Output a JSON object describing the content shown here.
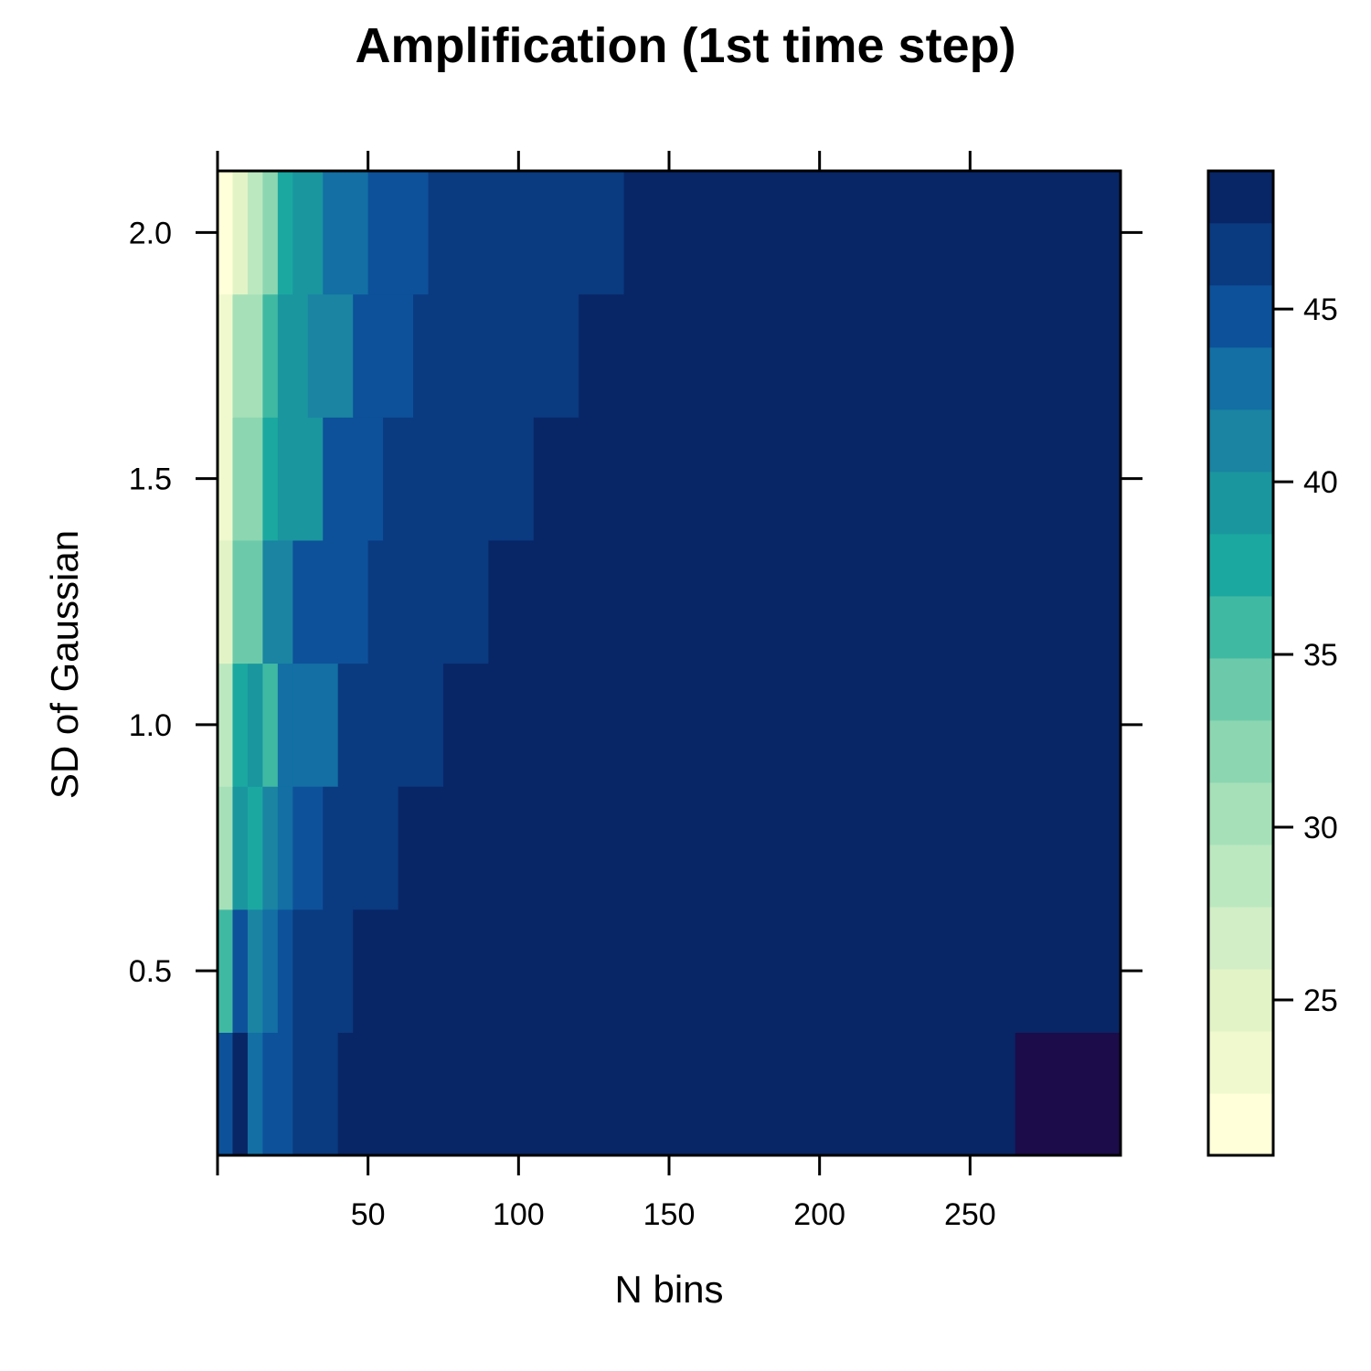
{
  "chart_data": {
    "type": "heatmap",
    "title": "Amplification (1st time step)",
    "xlabel": "N bins",
    "ylabel": "SD of Gaussian",
    "xlim": [
      0,
      300
    ],
    "ylim": [
      0.125,
      2.125
    ],
    "x_ticks": [
      50,
      100,
      150,
      200,
      250
    ],
    "x_tick_labels": [
      "50",
      "100",
      "150",
      "200",
      "250"
    ],
    "y_ticks": [
      0.5,
      1.0,
      1.5,
      2.0
    ],
    "y_tick_labels": [
      "0.5",
      "1.0",
      "1.5",
      "2.0"
    ],
    "colorbar": {
      "range": [
        20.5,
        49
      ],
      "ticks": [
        25,
        30,
        35,
        40,
        45
      ],
      "tick_labels": [
        "25",
        "30",
        "35",
        "40",
        "45"
      ],
      "levels": [
        {
          "from": 20.5,
          "to": 22.3,
          "color": "#ffffd9"
        },
        {
          "from": 22.3,
          "to": 24.1,
          "color": "#f0f9ce"
        },
        {
          "from": 24.1,
          "to": 25.9,
          "color": "#e2f4c6"
        },
        {
          "from": 25.9,
          "to": 27.7,
          "color": "#d2eec6"
        },
        {
          "from": 27.7,
          "to": 29.5,
          "color": "#bce8bf"
        },
        {
          "from": 29.5,
          "to": 31.3,
          "color": "#a6e0b8"
        },
        {
          "from": 31.3,
          "to": 33.1,
          "color": "#8cd6b1"
        },
        {
          "from": 33.1,
          "to": 34.9,
          "color": "#6ccaaa"
        },
        {
          "from": 34.9,
          "to": 36.7,
          "color": "#40b9a3"
        },
        {
          "from": 36.7,
          "to": 38.5,
          "color": "#1ba8a1"
        },
        {
          "from": 38.5,
          "to": 40.3,
          "color": "#1a969e"
        },
        {
          "from": 40.3,
          "to": 42.1,
          "color": "#1a84a2"
        },
        {
          "from": 42.1,
          "to": 43.9,
          "color": "#136fa4"
        },
        {
          "from": 43.9,
          "to": 45.7,
          "color": "#0d519a"
        },
        {
          "from": 45.7,
          "to": 47.5,
          "color": "#0a3a80"
        },
        {
          "from": 47.5,
          "to": 49.0,
          "color": "#082666"
        },
        {
          "from": 49.0,
          "to": 50.8,
          "color": "#1c0c4a"
        }
      ]
    },
    "rows": [
      {
        "y": [
          0.125,
          0.375
        ],
        "segments": [
          [
            0,
            5,
            13
          ],
          [
            5,
            10,
            15
          ],
          [
            10,
            15,
            12
          ],
          [
            15,
            25,
            13
          ],
          [
            25,
            40,
            14
          ],
          [
            40,
            265,
            15
          ],
          [
            265,
            300,
            16
          ]
        ]
      },
      {
        "y": [
          0.375,
          0.625
        ],
        "segments": [
          [
            0,
            5,
            8
          ],
          [
            5,
            10,
            13
          ],
          [
            10,
            15,
            11
          ],
          [
            15,
            20,
            12
          ],
          [
            20,
            25,
            13
          ],
          [
            25,
            45,
            14
          ],
          [
            45,
            300,
            15
          ]
        ]
      },
      {
        "y": [
          0.625,
          0.875
        ],
        "segments": [
          [
            0,
            5,
            5
          ],
          [
            5,
            10,
            10
          ],
          [
            10,
            15,
            9
          ],
          [
            15,
            20,
            11
          ],
          [
            20,
            25,
            12
          ],
          [
            25,
            35,
            13
          ],
          [
            35,
            60,
            14
          ],
          [
            60,
            300,
            15
          ]
        ]
      },
      {
        "y": [
          0.875,
          1.125
        ],
        "segments": [
          [
            0,
            5,
            4
          ],
          [
            5,
            10,
            9
          ],
          [
            10,
            15,
            10
          ],
          [
            15,
            20,
            8
          ],
          [
            20,
            25,
            12
          ],
          [
            25,
            40,
            12
          ],
          [
            40,
            75,
            14
          ],
          [
            75,
            300,
            15
          ]
        ]
      },
      {
        "y": [
          1.125,
          1.375
        ],
        "segments": [
          [
            0,
            5,
            2
          ],
          [
            5,
            15,
            7
          ],
          [
            15,
            20,
            11
          ],
          [
            20,
            25,
            11
          ],
          [
            25,
            50,
            13
          ],
          [
            50,
            90,
            14
          ],
          [
            90,
            300,
            15
          ]
        ]
      },
      {
        "y": [
          1.375,
          1.625
        ],
        "segments": [
          [
            0,
            5,
            1
          ],
          [
            5,
            15,
            6
          ],
          [
            15,
            20,
            9
          ],
          [
            20,
            35,
            10
          ],
          [
            35,
            55,
            13
          ],
          [
            55,
            105,
            14
          ],
          [
            105,
            300,
            15
          ]
        ]
      },
      {
        "y": [
          1.625,
          1.875
        ],
        "segments": [
          [
            0,
            5,
            1
          ],
          [
            5,
            15,
            5
          ],
          [
            15,
            20,
            8
          ],
          [
            20,
            30,
            10
          ],
          [
            30,
            45,
            11
          ],
          [
            45,
            65,
            13
          ],
          [
            65,
            120,
            14
          ],
          [
            120,
            300,
            15
          ]
        ]
      },
      {
        "y": [
          1.875,
          2.125
        ],
        "segments": [
          [
            0,
            5,
            0
          ],
          [
            5,
            10,
            2
          ],
          [
            10,
            15,
            4
          ],
          [
            15,
            20,
            6
          ],
          [
            20,
            25,
            9
          ],
          [
            25,
            35,
            10
          ],
          [
            35,
            50,
            12
          ],
          [
            50,
            70,
            13
          ],
          [
            70,
            135,
            14
          ],
          [
            135,
            300,
            15
          ]
        ]
      }
    ]
  }
}
